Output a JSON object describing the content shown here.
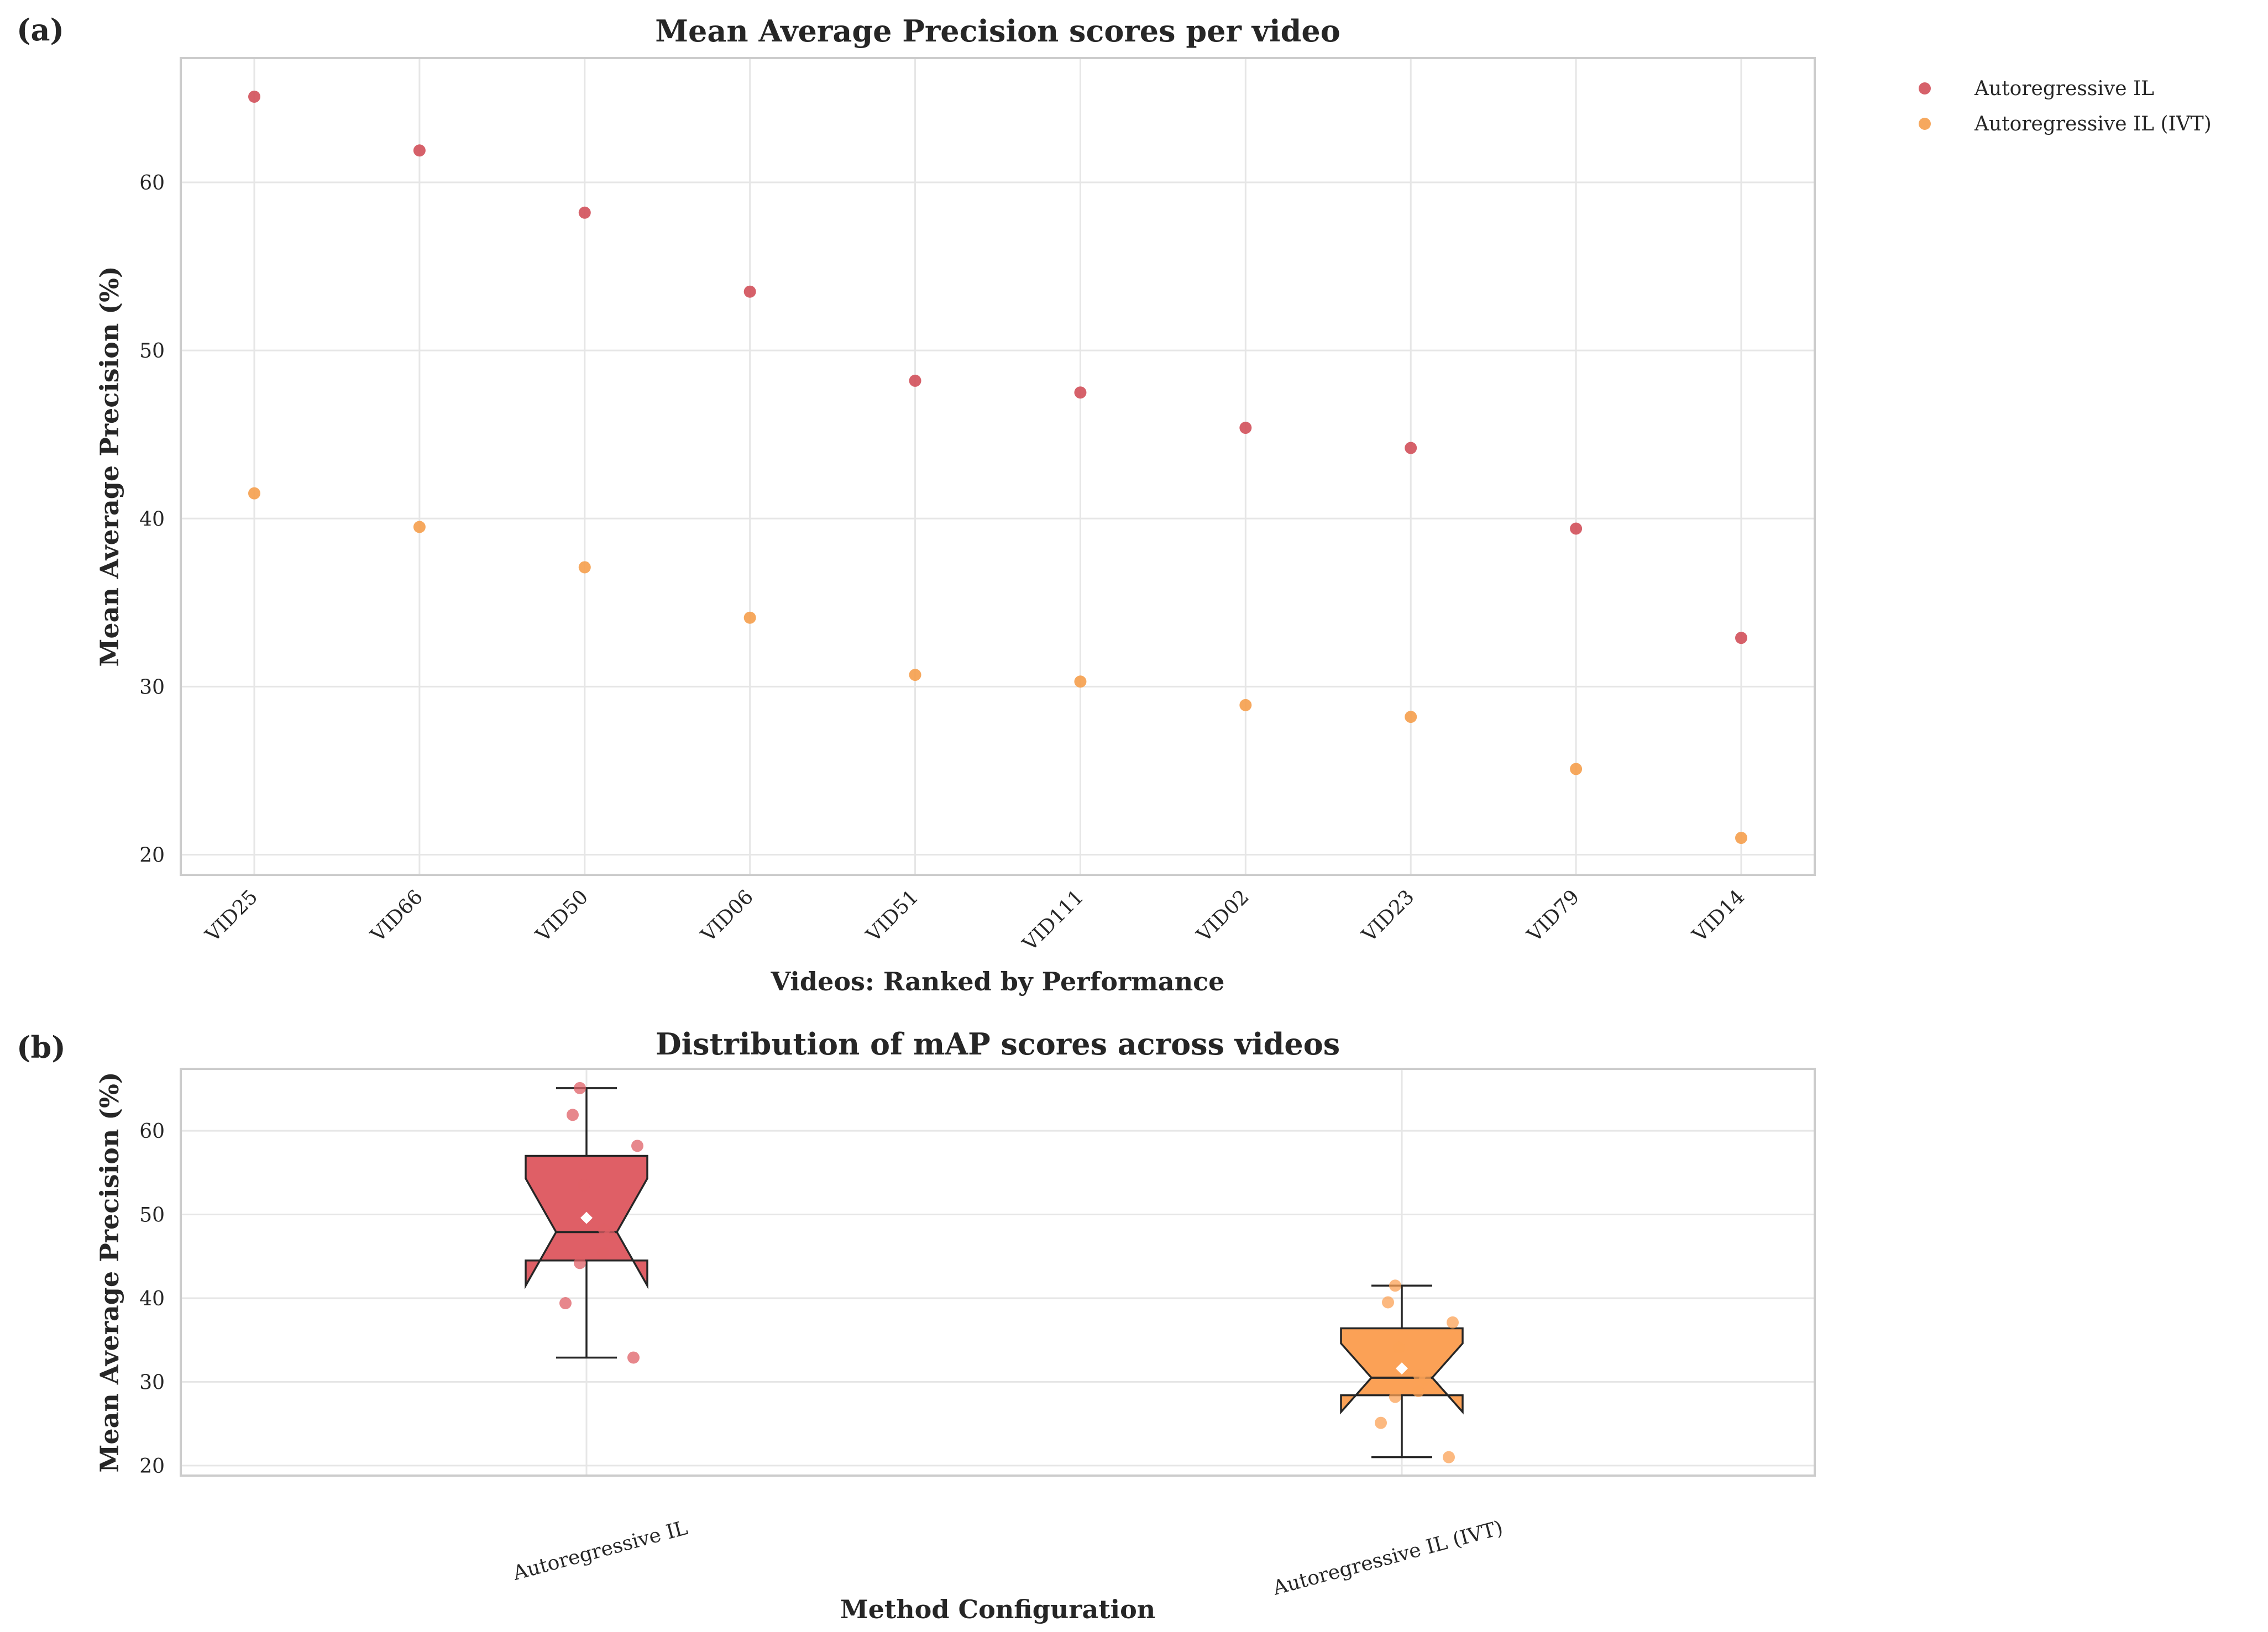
{
  "chart_data": [
    {
      "panel_label": "(a)",
      "type": "scatter",
      "title": "Mean Average Precision scores per video",
      "xlabel": "Videos: Ranked by Performance",
      "ylabel": "Mean Average Precision (%)",
      "categories": [
        "VID25",
        "VID66",
        "VID50",
        "VID06",
        "VID51",
        "VID111",
        "VID02",
        "VID23",
        "VID79",
        "VID14"
      ],
      "series": [
        {
          "name": "Autoregressive IL",
          "color": "#d1505a",
          "values": [
            65.1,
            61.9,
            58.2,
            53.5,
            48.2,
            47.5,
            45.4,
            44.2,
            39.4,
            32.9
          ]
        },
        {
          "name": "Autoregressive IL (IVT)",
          "color": "#f59e4c",
          "values": [
            41.5,
            39.5,
            37.1,
            34.1,
            30.7,
            30.3,
            28.9,
            28.2,
            25.1,
            21.0
          ]
        }
      ],
      "ylim": [
        18.8,
        67.4
      ],
      "yticks": [
        20,
        30,
        40,
        50,
        60
      ],
      "grid": true,
      "legend": "outside-right-top"
    },
    {
      "panel_label": "(b)",
      "type": "box",
      "title": "Distribution of mAP scores across videos",
      "xlabel": "Method Configuration",
      "ylabel": "Mean Average Precision (%)",
      "categories": [
        "Autoregressive IL",
        "Autoregressive IL (IVT)"
      ],
      "boxes": [
        {
          "name": "Autoregressive IL",
          "color": "#df5f66",
          "whisker_low": 32.9,
          "q1": 44.5,
          "median": 47.9,
          "q3": 57.0,
          "whisker_high": 65.1,
          "notch_low": 41.5,
          "notch_high": 54.3,
          "mean": 49.6,
          "points": [
            65.1,
            61.9,
            58.2,
            53.5,
            48.2,
            47.5,
            45.4,
            44.2,
            39.4,
            32.9
          ]
        },
        {
          "name": "Autoregressive IL (IVT)",
          "color": "#fba156",
          "whisker_low": 21.0,
          "q1": 28.4,
          "median": 30.5,
          "q3": 36.4,
          "whisker_high": 41.5,
          "notch_low": 26.4,
          "notch_high": 34.6,
          "mean": 31.6,
          "points": [
            41.5,
            39.5,
            37.1,
            34.1,
            30.7,
            30.3,
            28.9,
            28.2,
            25.1,
            21.0
          ]
        }
      ],
      "ylim": [
        18.8,
        67.4
      ],
      "yticks": [
        20,
        30,
        40,
        50,
        60
      ],
      "grid": true
    }
  ]
}
